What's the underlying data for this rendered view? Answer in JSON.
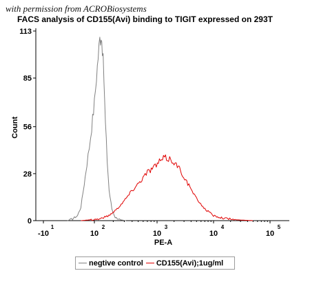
{
  "watermark": "with permission from ACROBiosystems",
  "chart_data": {
    "type": "area",
    "title": "FACS analysis of CD155(Avi) binding to TIGIT expressed on 293T",
    "xlabel": "PE-A",
    "ylabel": "Count",
    "x_scale": "biexponential",
    "xlim_label_range": [
      "-10^1",
      "10^5"
    ],
    "ylim": [
      0,
      113
    ],
    "y_ticks": [
      0,
      28,
      56,
      85,
      113
    ],
    "x_ticks": [
      {
        "value": -10,
        "base": "-10",
        "exp": "1"
      },
      {
        "value": 100,
        "base": "10",
        "exp": "2"
      },
      {
        "value": 1000,
        "base": "10",
        "exp": "3"
      },
      {
        "value": 10000,
        "base": "10",
        "exp": "4"
      },
      {
        "value": 100000,
        "base": "10",
        "exp": "5"
      }
    ],
    "grid": false,
    "legend_position": "bottom",
    "series": [
      {
        "name": "negtive control",
        "color": "#808080",
        "points": [
          [
            20,
            0
          ],
          [
            35,
            1
          ],
          [
            50,
            3
          ],
          [
            60,
            8
          ],
          [
            70,
            22
          ],
          [
            78,
            34
          ],
          [
            85,
            44
          ],
          [
            92,
            56
          ],
          [
            100,
            70
          ],
          [
            108,
            86
          ],
          [
            115,
            98
          ],
          [
            122,
            108
          ],
          [
            128,
            112
          ],
          [
            134,
            104
          ],
          [
            142,
            84
          ],
          [
            150,
            58
          ],
          [
            160,
            36
          ],
          [
            172,
            18
          ],
          [
            190,
            7
          ],
          [
            215,
            2
          ],
          [
            260,
            0.5
          ],
          [
            320,
            0
          ]
        ]
      },
      {
        "name": "CD155(Avi);1ug/ml",
        "color": "#e00000",
        "points": [
          [
            60,
            0
          ],
          [
            120,
            1
          ],
          [
            170,
            3
          ],
          [
            230,
            7
          ],
          [
            300,
            12
          ],
          [
            400,
            18
          ],
          [
            550,
            24
          ],
          [
            700,
            29
          ],
          [
            900,
            32
          ],
          [
            1100,
            35
          ],
          [
            1300,
            37
          ],
          [
            1600,
            37
          ],
          [
            2000,
            35
          ],
          [
            2600,
            30
          ],
          [
            3500,
            22
          ],
          [
            5000,
            13
          ],
          [
            7000,
            7
          ],
          [
            10000,
            3
          ],
          [
            15000,
            1.5
          ],
          [
            25000,
            0.5
          ],
          [
            50000,
            0
          ]
        ]
      }
    ]
  }
}
